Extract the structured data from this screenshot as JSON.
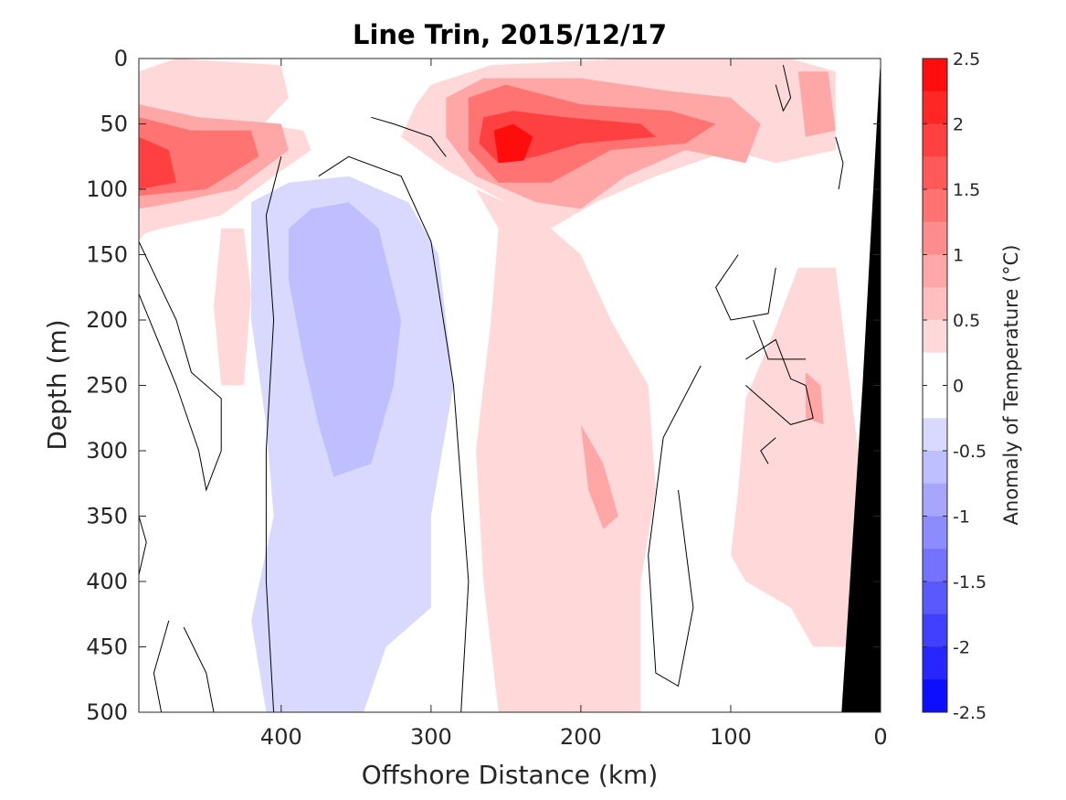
{
  "chart_data": {
    "type": "heatmap",
    "title": "Line Trin, 2015/12/17",
    "xlabel": "Offshore Distance (km)",
    "ylabel": "Depth (m)",
    "colorbar_label": "Anomaly of Temperature (°C)",
    "xlim": [
      495,
      0
    ],
    "ylim": [
      500,
      0
    ],
    "x_ticks": [
      400,
      300,
      200,
      100,
      0
    ],
    "y_ticks": [
      0,
      50,
      100,
      150,
      200,
      250,
      300,
      350,
      400,
      450,
      500
    ],
    "colorbar": {
      "range": [
        -2.5,
        2.5
      ],
      "ticks": [
        "2.5",
        "2",
        "1.5",
        "1",
        "0.5",
        "0",
        "-0.5",
        "-1",
        "-1.5",
        "-2",
        "-2.5"
      ],
      "levels": 20,
      "palette": "blue-white-red",
      "color_max": "#ff0000",
      "color_min": "#0000ff",
      "color_mid": "#ffffff"
    },
    "fields": [
      {
        "name": "warm core near-surface",
        "x": [
          260,
          130
        ],
        "depth": [
          20,
          110
        ],
        "peak_anomaly": 2.3
      },
      {
        "name": "warm offshore near-surface",
        "x": [
          495,
          380
        ],
        "depth": [
          30,
          130
        ],
        "peak_anomaly": 2.0
      },
      {
        "name": "cool subsurface tongue",
        "x": [
          420,
          280
        ],
        "depth": [
          100,
          500
        ],
        "peak_anomaly": -0.6
      },
      {
        "name": "warm subsurface band",
        "x": [
          270,
          160
        ],
        "depth": [
          130,
          500
        ],
        "peak_anomaly": 0.6
      },
      {
        "name": "warm nearshore band",
        "x": [
          90,
          20
        ],
        "depth": [
          150,
          450
        ],
        "peak_anomaly": 0.6
      },
      {
        "name": "bathymetry",
        "x": [
          30,
          0
        ],
        "depth": [
          0,
          500
        ],
        "fill": "#000000"
      }
    ]
  }
}
